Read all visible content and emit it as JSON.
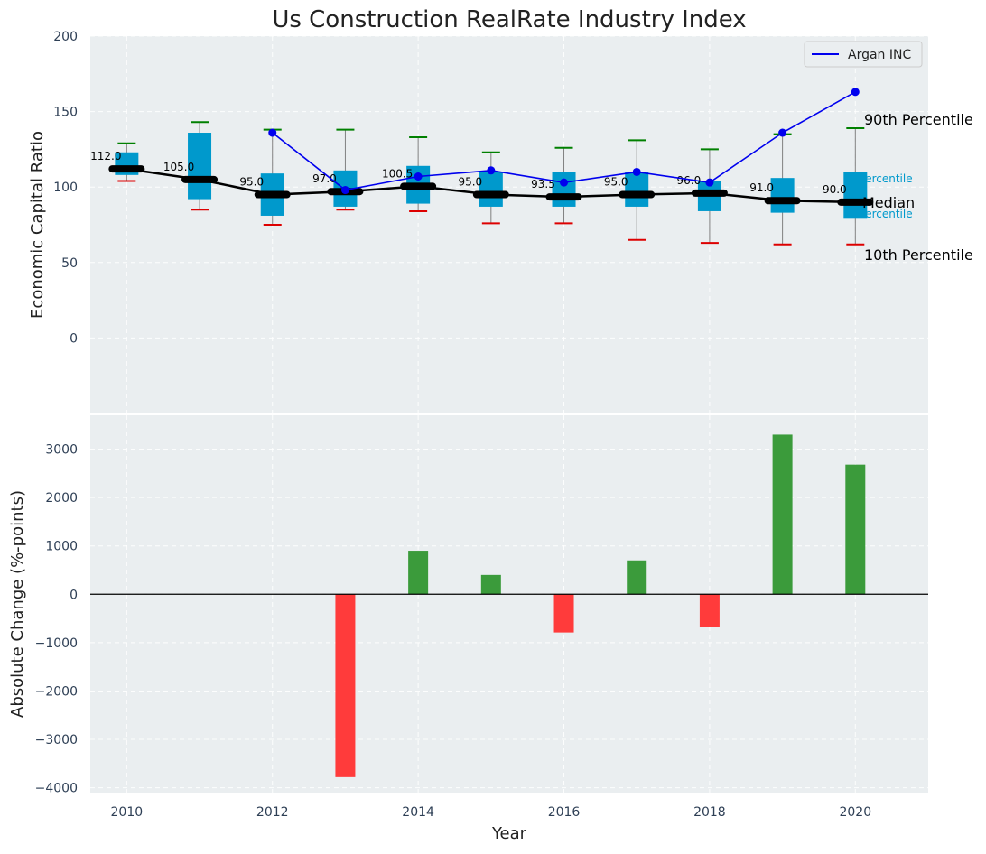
{
  "chart_data": [
    {
      "type": "box",
      "title": "Us Construction RealRate Industry Index",
      "xlabel": "",
      "ylabel": "Economic Capital Ratio",
      "ylim": [
        -50,
        200
      ],
      "yticks": [
        0,
        50,
        100,
        150,
        200
      ],
      "years": [
        2010,
        2011,
        2012,
        2013,
        2014,
        2015,
        2016,
        2017,
        2018,
        2019,
        2020
      ],
      "boxes": [
        {
          "year": 2010,
          "p10": 104,
          "q1": 108,
          "median": 112.0,
          "q3": 123,
          "p90": 129
        },
        {
          "year": 2011,
          "p10": 85,
          "q1": 92,
          "median": 105.0,
          "q3": 136,
          "p90": 143
        },
        {
          "year": 2012,
          "p10": 75,
          "q1": 81,
          "median": 95.0,
          "q3": 109,
          "p90": 138
        },
        {
          "year": 2013,
          "p10": 85,
          "q1": 87,
          "median": 97.0,
          "q3": 111,
          "p90": 138
        },
        {
          "year": 2014,
          "p10": 84,
          "q1": 89,
          "median": 100.5,
          "q3": 114,
          "p90": 133
        },
        {
          "year": 2015,
          "p10": 76,
          "q1": 87,
          "median": 95.0,
          "q3": 110,
          "p90": 123
        },
        {
          "year": 2016,
          "p10": 76,
          "q1": 87,
          "median": 93.5,
          "q3": 110,
          "p90": 126
        },
        {
          "year": 2017,
          "p10": 65,
          "q1": 87,
          "median": 95.0,
          "q3": 110,
          "p90": 131
        },
        {
          "year": 2018,
          "p10": 63,
          "q1": 84,
          "median": 96.0,
          "q3": 104,
          "p90": 125
        },
        {
          "year": 2019,
          "p10": 62,
          "q1": 83,
          "median": 91.0,
          "q3": 106,
          "p90": 135
        },
        {
          "year": 2020,
          "p10": 62,
          "q1": 79,
          "median": 90.0,
          "q3": 110,
          "p90": 139
        }
      ],
      "median_labels": [
        "112.0",
        "105.0",
        "95.0",
        "97.0",
        "100.5",
        "95.0",
        "93.5",
        "95.0",
        "96.0",
        "91.0",
        "90.0"
      ],
      "series": [
        {
          "name": "Argan INC",
          "color": "#0000ee",
          "points": [
            [
              2012,
              136
            ],
            [
              2013,
              98
            ],
            [
              2014,
              107
            ],
            [
              2015,
              111
            ],
            [
              2016,
              103
            ],
            [
              2017,
              110
            ],
            [
              2018,
              103
            ],
            [
              2019,
              136
            ],
            [
              2020,
              163
            ]
          ]
        }
      ],
      "legend": {
        "position": "top-right",
        "label": "Argan INC"
      },
      "annotations": {
        "p90": "90th Percentile",
        "p75": "75th Percentile",
        "median": "Median",
        "p25": "25th Percentile",
        "p10": "10th Percentile"
      },
      "colors": {
        "box": "#0099cc",
        "median": "#000000",
        "p90_cap": "#008000",
        "p10_cap": "#dd0000",
        "whisker": "#808080",
        "line": "#0000ee",
        "background": "#eaeef0"
      }
    },
    {
      "type": "bar",
      "xlabel": "Year",
      "ylabel": "Absolute Change (%-points)",
      "ylim": [
        -4100,
        3700
      ],
      "yticks": [
        -4000,
        -3000,
        -2000,
        -1000,
        0,
        1000,
        2000,
        3000
      ],
      "xticks": [
        2010,
        2012,
        2014,
        2016,
        2018,
        2020
      ],
      "xlim": [
        2009.5,
        2021
      ],
      "categories": [
        2013,
        2014,
        2015,
        2016,
        2017,
        2018,
        2019,
        2020
      ],
      "values": [
        -3780,
        900,
        400,
        -790,
        700,
        -680,
        3300,
        2680
      ],
      "colors": {
        "positive": "#3b9b3b",
        "negative": "#ff3b3b",
        "zero_line": "#000000"
      }
    }
  ]
}
